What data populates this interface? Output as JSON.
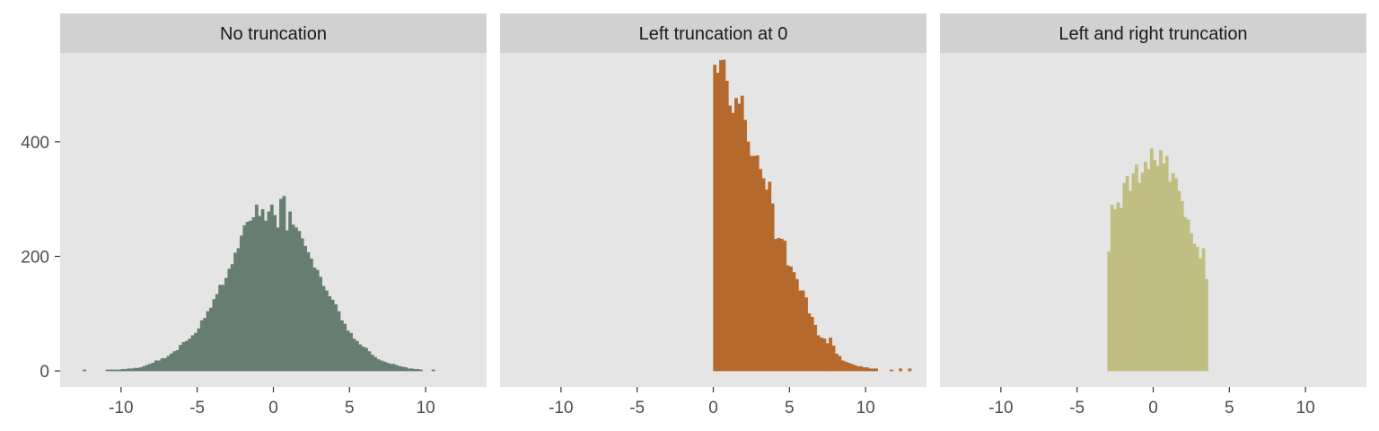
{
  "chart_data": [
    {
      "type": "bar",
      "title": "No truncation",
      "color": "#667D72",
      "xlim": [
        -14,
        14
      ],
      "ylim": [
        -28,
        555
      ],
      "x_ticks": [
        -10,
        -5,
        0,
        5,
        10
      ],
      "y_ticks": [
        0,
        200,
        400
      ],
      "bin_width": 0.2,
      "x": [
        -12.5,
        -11,
        -10.8,
        -10.6,
        -10.4,
        -10.2,
        -10,
        -9.8,
        -9.6,
        -9.4,
        -9.2,
        -9,
        -8.8,
        -8.6,
        -8.4,
        -8.2,
        -8,
        -7.8,
        -7.6,
        -7.4,
        -7.2,
        -7,
        -6.8,
        -6.6,
        -6.4,
        -6.2,
        -6,
        -5.8,
        -5.6,
        -5.4,
        -5.2,
        -5,
        -4.8,
        -4.6,
        -4.4,
        -4.2,
        -4,
        -3.8,
        -3.6,
        -3.4,
        -3.2,
        -3,
        -2.8,
        -2.6,
        -2.4,
        -2.2,
        -2,
        -1.8,
        -1.6,
        -1.4,
        -1.2,
        -1,
        -0.8,
        -0.6,
        -0.4,
        -0.2,
        0,
        0.2,
        0.4,
        0.6,
        0.8,
        1,
        1.2,
        1.4,
        1.6,
        1.8,
        2,
        2.2,
        2.4,
        2.6,
        2.8,
        3,
        3.2,
        3.4,
        3.6,
        3.8,
        4,
        4.2,
        4.4,
        4.6,
        4.8,
        5,
        5.2,
        5.4,
        5.6,
        5.8,
        6,
        6.2,
        6.4,
        6.6,
        6.8,
        7,
        7.2,
        7.4,
        7.6,
        7.8,
        8,
        8.2,
        8.4,
        8.6,
        8.8,
        9,
        9.2,
        9.4,
        9.6,
        10.4
      ],
      "values": [
        2,
        2,
        2,
        2,
        2,
        2,
        3,
        3,
        4,
        4,
        5,
        5,
        6,
        8,
        10,
        12,
        14,
        18,
        18,
        22,
        22,
        26,
        30,
        34,
        36,
        45,
        50,
        52,
        56,
        62,
        66,
        74,
        88,
        92,
        104,
        110,
        125,
        134,
        150,
        150,
        162,
        178,
        186,
        206,
        214,
        236,
        254,
        260,
        262,
        268,
        290,
        270,
        282,
        262,
        278,
        290,
        272,
        250,
        300,
        305,
        245,
        278,
        255,
        250,
        244,
        231,
        218,
        207,
        196,
        180,
        176,
        164,
        148,
        140,
        130,
        124,
        116,
        104,
        88,
        82,
        70,
        66,
        56,
        52,
        46,
        42,
        40,
        34,
        28,
        24,
        20,
        18,
        16,
        14,
        12,
        12,
        10,
        8,
        7,
        6,
        4,
        4,
        3,
        3,
        2,
        2
      ]
    },
    {
      "type": "bar",
      "title": "Left truncation at 0",
      "color": "#B5692C",
      "xlim": [
        -14,
        14
      ],
      "ylim": [
        -28,
        555
      ],
      "x_ticks": [
        -10,
        -5,
        0,
        5,
        10
      ],
      "y_ticks": [
        0,
        200,
        400
      ],
      "bin_width": 0.2,
      "x": [
        0,
        0.2,
        0.4,
        0.6,
        0.8,
        1,
        1.2,
        1.4,
        1.6,
        1.8,
        2,
        2.2,
        2.4,
        2.6,
        2.8,
        3,
        3.2,
        3.4,
        3.6,
        3.8,
        4,
        4.2,
        4.4,
        4.6,
        4.8,
        5,
        5.2,
        5.4,
        5.6,
        5.8,
        6,
        6.2,
        6.4,
        6.6,
        6.8,
        7,
        7.2,
        7.4,
        7.6,
        7.8,
        8,
        8.2,
        8.4,
        8.6,
        8.8,
        9,
        9.2,
        9.4,
        9.6,
        9.8,
        10,
        10.2,
        10.4,
        10.6,
        11.6,
        12.2,
        12.8
      ],
      "values": [
        534,
        520,
        542,
        543,
        506,
        463,
        450,
        476,
        466,
        480,
        438,
        400,
        375,
        375,
        376,
        352,
        336,
        316,
        330,
        292,
        230,
        232,
        230,
        227,
        184,
        182,
        172,
        160,
        140,
        140,
        128,
        100,
        94,
        80,
        62,
        58,
        56,
        48,
        58,
        44,
        30,
        26,
        18,
        16,
        14,
        12,
        10,
        8,
        8,
        6,
        6,
        4,
        4,
        4,
        2,
        4,
        4
      ]
    },
    {
      "type": "bar",
      "title": "Left and right truncation",
      "color": "#C1BE82",
      "xlim": [
        -14,
        14
      ],
      "ylim": [
        -28,
        555
      ],
      "x_ticks": [
        -10,
        -5,
        0,
        5,
        10
      ],
      "y_ticks": [
        0,
        200,
        400
      ],
      "bin_width": 0.2,
      "x": [
        -3,
        -2.8,
        -2.6,
        -2.4,
        -2.2,
        -2,
        -1.8,
        -1.6,
        -1.4,
        -1.2,
        -1,
        -0.8,
        -0.6,
        -0.4,
        -0.2,
        0,
        0.2,
        0.4,
        0.6,
        0.8,
        1,
        1.2,
        1.4,
        1.6,
        1.8,
        2,
        2.2,
        2.4,
        2.6,
        2.8,
        3,
        3.2,
        3.4
      ],
      "values": [
        208,
        290,
        282,
        294,
        284,
        328,
        340,
        314,
        345,
        360,
        328,
        346,
        365,
        352,
        388,
        368,
        358,
        385,
        362,
        375,
        330,
        345,
        336,
        314,
        296,
        268,
        264,
        240,
        222,
        216,
        196,
        214,
        160
      ]
    }
  ]
}
